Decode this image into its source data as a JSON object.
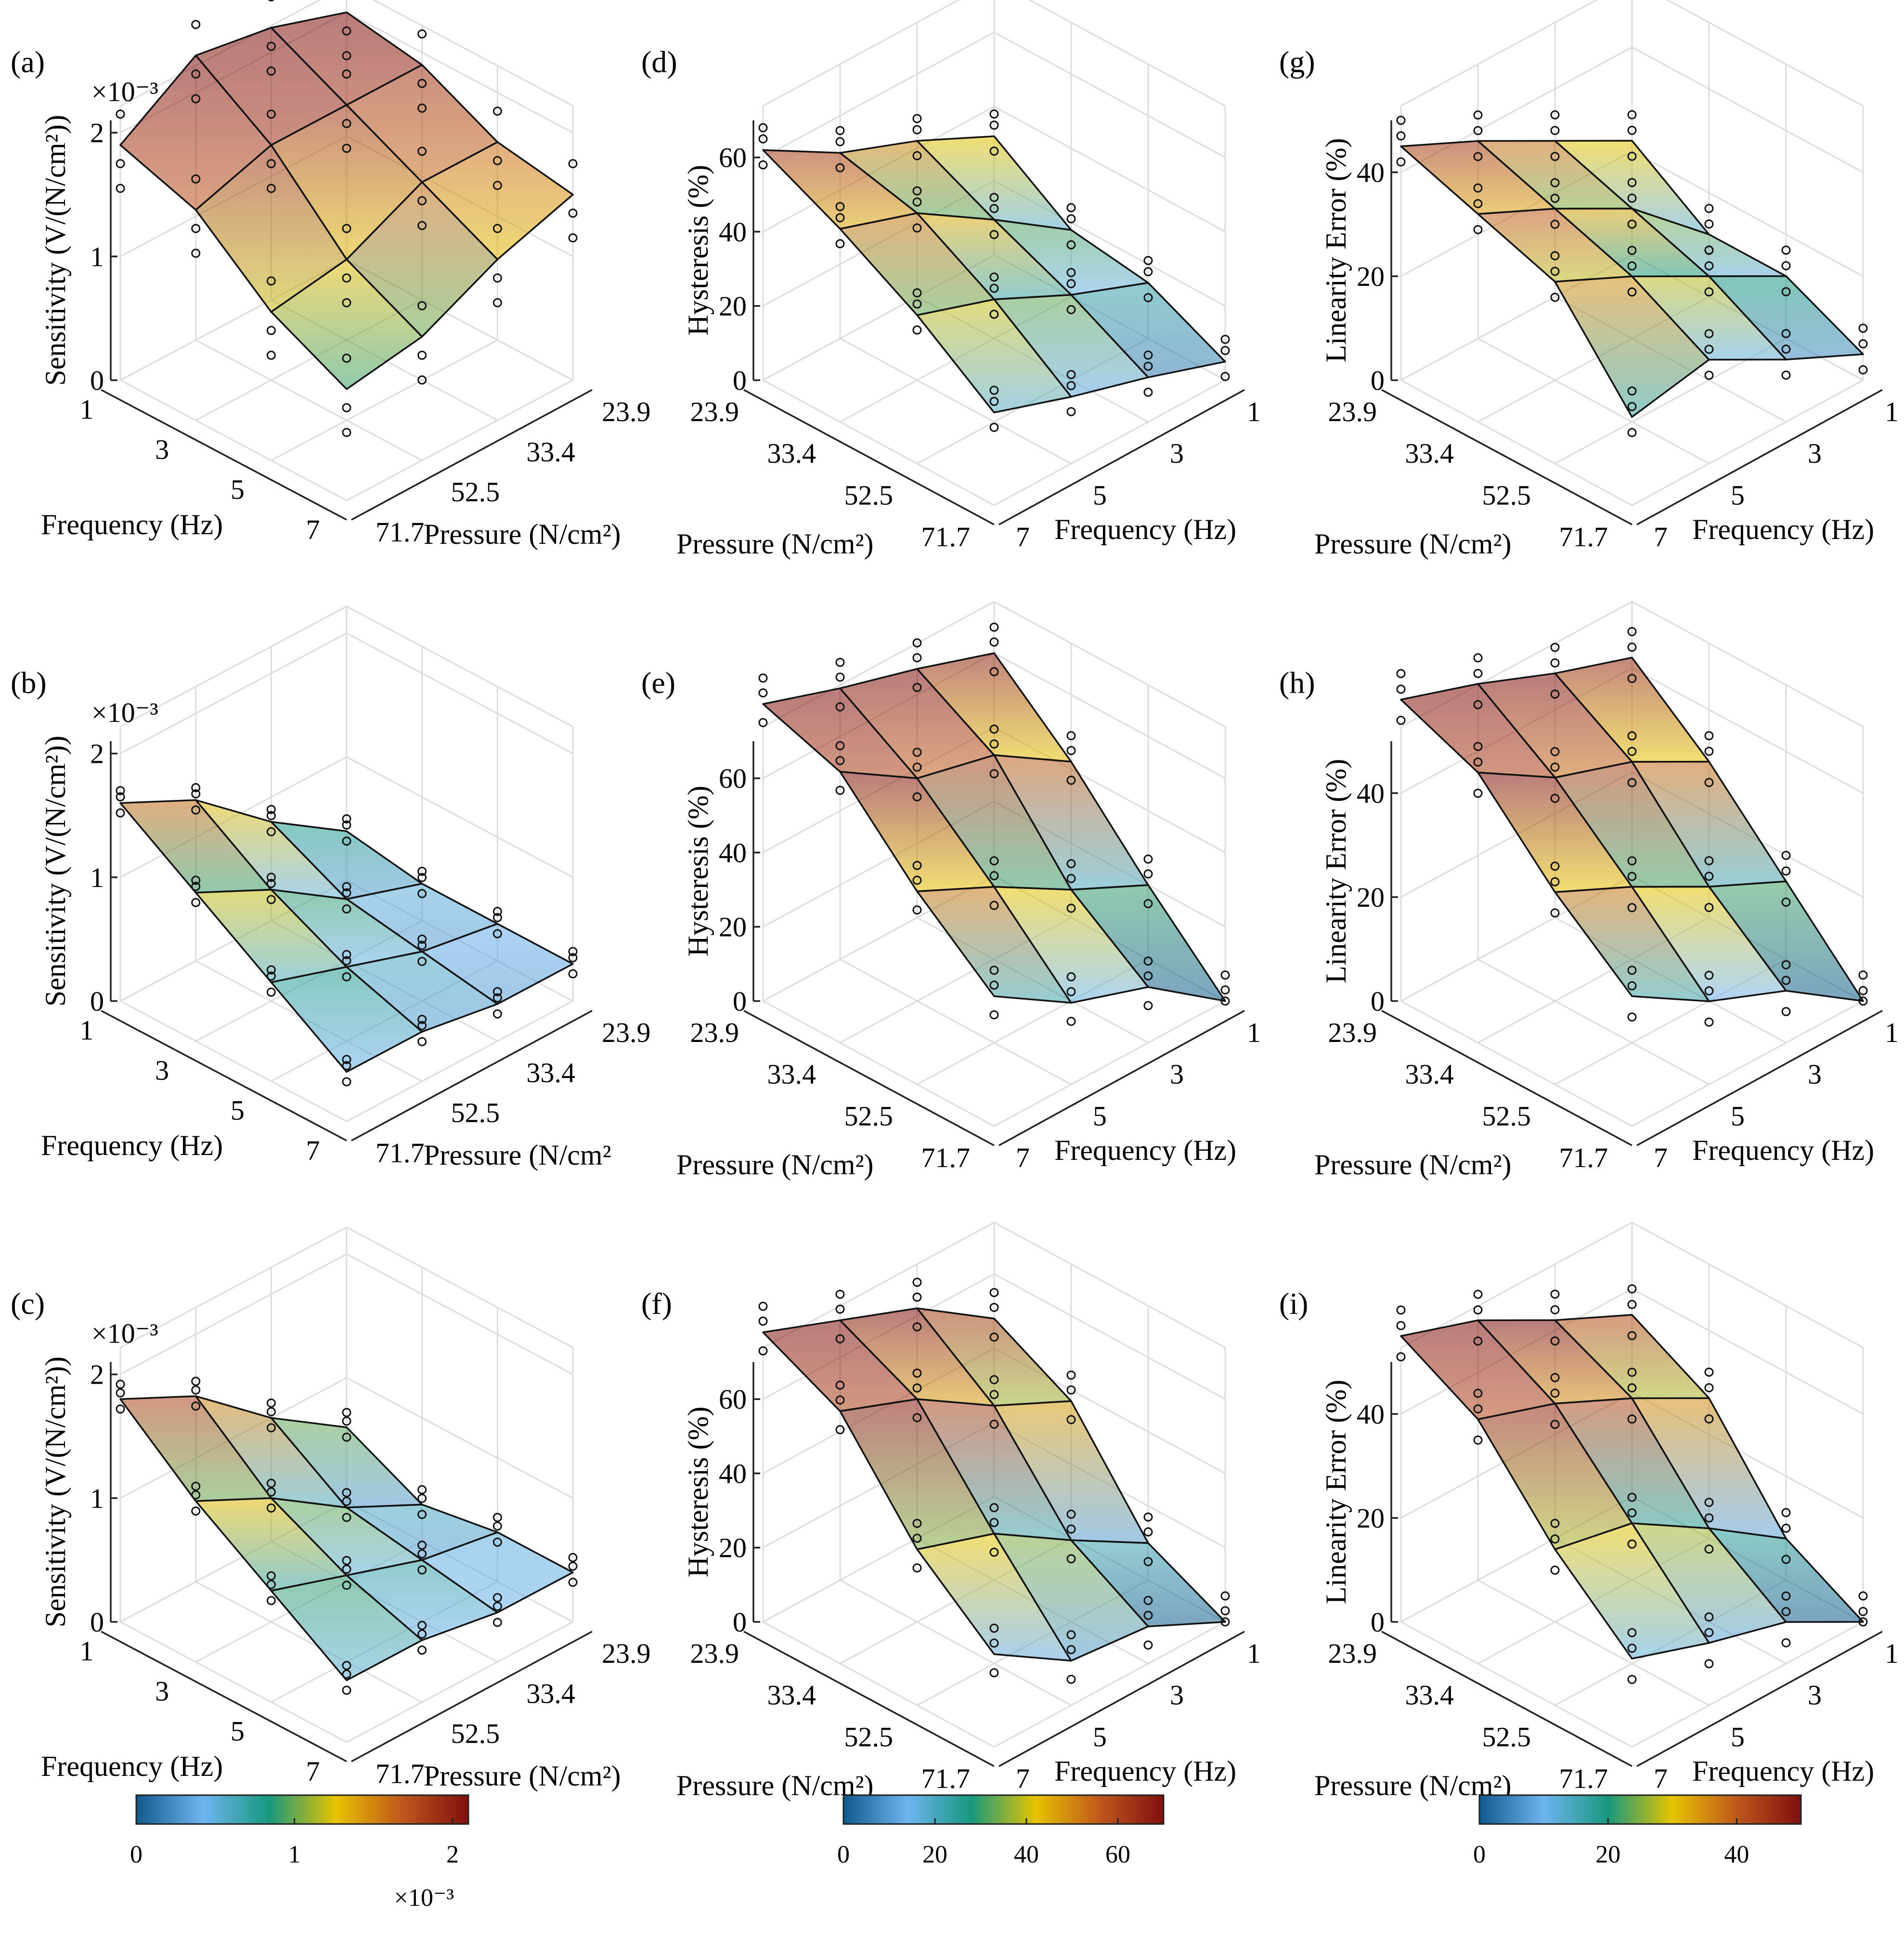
{
  "figure": {
    "colors": {
      "c0": "#0f5a8c",
      "c1": "#6eb4f0",
      "c2": "#18987e",
      "c3": "#e6c300",
      "c4": "#c0571c",
      "c5": "#7f1010"
    },
    "colorbars": [
      {
        "id": "cb1",
        "ticks": [
          "0",
          "1",
          "2"
        ],
        "min": 0,
        "max": 2.1,
        "tickvals": [
          0,
          1,
          2
        ],
        "exponent": "×10⁻³"
      },
      {
        "id": "cb2",
        "ticks": [
          "0",
          "20",
          "40",
          "60"
        ],
        "min": 0,
        "max": 70,
        "tickvals": [
          0,
          20,
          40,
          60
        ],
        "exponent": ""
      },
      {
        "id": "cb3",
        "ticks": [
          "0",
          "20",
          "40"
        ],
        "min": 0,
        "max": 50,
        "tickvals": [
          0,
          20,
          40
        ],
        "exponent": ""
      }
    ]
  },
  "chart_data": [
    {
      "id": "a",
      "label": "(a)",
      "type": "surface",
      "zlabel": "Sensitivity (V/(N/cm²))",
      "zexp": "×10⁻³",
      "xlabel": "Frequency (Hz)",
      "ylabel": "Pressure (N/cm²)",
      "freq": [
        1,
        3,
        5,
        7
      ],
      "pressure": [
        23.9,
        33.4,
        52.5,
        71.7
      ],
      "zticks": [
        "0",
        "1",
        "2"
      ],
      "zticknum": [
        0,
        1,
        2
      ],
      "zmax": 2.1,
      "values": [
        [
          2.0,
          2.2,
          2.3,
          1.9
        ],
        [
          1.9,
          1.9,
          1.9,
          1.7
        ],
        [
          1.6,
          1.6,
          1.3,
          1.2
        ],
        [
          1.5,
          1.3,
          1.0,
          0.9
        ]
      ],
      "cmax": 2.1,
      "view": "a",
      "scatter_offsets": [
        -0.35,
        -0.15,
        0.25
      ]
    },
    {
      "id": "d",
      "label": "(d)",
      "type": "surface",
      "zlabel": "Hysteresis (%)",
      "zexp": "",
      "xlabel": "Frequency (Hz)",
      "ylabel": "Pressure (N/cm²)",
      "freq": [
        1,
        3,
        5,
        7
      ],
      "pressure": [
        23.9,
        33.4,
        52.5,
        71.7
      ],
      "zticks": [
        "0",
        "20",
        "40",
        "60"
      ],
      "zticknum": [
        0,
        20,
        40,
        60
      ],
      "zmax": 70,
      "values": [
        [
          32,
          42,
          50,
          62
        ],
        [
          18,
          32,
          45,
          52
        ],
        [
          15,
          23,
          33,
          40
        ],
        [
          5,
          12,
          18,
          25
        ]
      ],
      "cmax": 70,
      "view": "d",
      "scatter_offsets": [
        -4,
        3,
        6
      ]
    },
    {
      "id": "g",
      "label": "(g)",
      "type": "surface",
      "zlabel": "Linearity Error (%)",
      "zexp": "",
      "xlabel": "Frequency (Hz)",
      "ylabel": "Pressure (N/cm²)",
      "freq": [
        1,
        3,
        5,
        7
      ],
      "pressure": [
        23.9,
        33.4,
        52.5,
        71.7
      ],
      "zticks": [
        "0",
        "20",
        "40"
      ],
      "zticknum": [
        0,
        20,
        40
      ],
      "zmax": 50,
      "values": [
        [
          22,
          30,
          38,
          45
        ],
        [
          12,
          25,
          33,
          40
        ],
        [
          12,
          20,
          28,
          35
        ],
        [
          5,
          12,
          20,
          17
        ]
      ],
      "cmax": 50,
      "view": "d",
      "scatter_offsets": [
        -3,
        2,
        5
      ]
    },
    {
      "id": "b",
      "label": "(b)",
      "type": "surface",
      "zlabel": "Sensitivity (V/(N/cm²))",
      "zexp": "×10⁻³",
      "xlabel": "Frequency (Hz)",
      "ylabel": "Pressure (N/cm²",
      "freq": [
        1,
        3,
        5,
        7
      ],
      "pressure": [
        23.9,
        33.4,
        52.5,
        71.7
      ],
      "zticks": [
        "0",
        "1",
        "2"
      ],
      "zticknum": [
        0,
        1,
        2
      ],
      "zmax": 2.1,
      "values": [
        [
          0.4,
          0.8,
          1.3,
          1.6
        ],
        [
          0.3,
          0.5,
          0.9,
          1.2
        ],
        [
          0.3,
          0.4,
          0.6,
          0.8
        ],
        [
          0.3,
          0.3,
          0.4,
          0.4
        ]
      ],
      "cmax": 2.1,
      "view": "a",
      "scatter_offsets": [
        -0.08,
        0.05,
        0.1
      ]
    },
    {
      "id": "e",
      "label": "(e)",
      "type": "surface",
      "zlabel": "Hysteresis (%)",
      "zexp": "",
      "xlabel": "Frequency (Hz)",
      "ylabel": "Pressure (N/cm²)",
      "freq": [
        1,
        3,
        5,
        7
      ],
      "pressure": [
        23.9,
        33.4,
        52.5,
        71.7
      ],
      "zticks": [
        "0",
        "20",
        "40",
        "60"
      ],
      "zticknum": [
        0,
        20,
        40,
        60
      ],
      "zmax": 70,
      "values": [
        [
          60,
          67,
          73,
          80
        ],
        [
          42,
          55,
          60,
          73
        ],
        [
          20,
          30,
          42,
          52
        ],
        [
          0,
          15,
          22,
          35
        ]
      ],
      "cmax": 70,
      "view": "d",
      "scatter_offsets": [
        -5,
        3,
        7
      ]
    },
    {
      "id": "h",
      "label": "(h)",
      "type": "surface",
      "zlabel": "Linearity Error (%)",
      "zexp": "",
      "xlabel": "Frequency (Hz)",
      "ylabel": "Pressure (N/cm²)",
      "freq": [
        1,
        3,
        5,
        7
      ],
      "pressure": [
        23.9,
        33.4,
        52.5,
        71.7
      ],
      "zticks": [
        "0",
        "20",
        "40"
      ],
      "zticknum": [
        0,
        20,
        40
      ],
      "zmax": 50,
      "values": [
        [
          42,
          47,
          53,
          58
        ],
        [
          30,
          38,
          43,
          52
        ],
        [
          15,
          22,
          30,
          37
        ],
        [
          0,
          10,
          16,
          25
        ]
      ],
      "cmax": 50,
      "view": "d",
      "scatter_offsets": [
        -4,
        2,
        5
      ]
    },
    {
      "id": "c",
      "label": "(c)",
      "type": "surface",
      "zlabel": "Sensitivity (V/(N/cm²))",
      "zexp": "×10⁻³",
      "xlabel": "Frequency (Hz)",
      "ylabel": "Pressure (N/cm²)",
      "freq": [
        1,
        3,
        5,
        7
      ],
      "pressure": [
        23.9,
        33.4,
        52.5,
        71.7
      ],
      "zticks": [
        "0",
        "1",
        "2"
      ],
      "zticknum": [
        0,
        1,
        2
      ],
      "zmax": 2.1,
      "values": [
        [
          0.6,
          1.0,
          1.5,
          1.8
        ],
        [
          0.3,
          0.6,
          1.0,
          1.3
        ],
        [
          0.4,
          0.5,
          0.7,
          0.9
        ],
        [
          0.4,
          0.4,
          0.5,
          0.5
        ]
      ],
      "cmax": 2.1,
      "view": "a",
      "scatter_offsets": [
        -0.08,
        0.05,
        0.12
      ]
    },
    {
      "id": "f",
      "label": "(f)",
      "type": "surface",
      "zlabel": "Hysteresis (%)",
      "zexp": "",
      "xlabel": "Frequency (Hz)",
      "ylabel": "Pressure (N/cm²)",
      "freq": [
        1,
        3,
        5,
        7
      ],
      "pressure": [
        23.9,
        33.4,
        52.5,
        71.7
      ],
      "zticks": [
        "0",
        "20",
        "40",
        "60"
      ],
      "zticknum": [
        0,
        20,
        40,
        60
      ],
      "zmax": 70,
      "values": [
        [
          48,
          62,
          70,
          78
        ],
        [
          37,
          47,
          60,
          68
        ],
        [
          10,
          22,
          35,
          42
        ],
        [
          0,
          10,
          12,
          25
        ]
      ],
      "cmax": 70,
      "view": "d",
      "scatter_offsets": [
        -5,
        3,
        7
      ]
    },
    {
      "id": "i",
      "label": "(i)",
      "type": "surface",
      "zlabel": "Linearity Error (%)",
      "zexp": "",
      "xlabel": "Frequency (Hz)",
      "ylabel": "Pressure (N/cm²)",
      "freq": [
        1,
        3,
        5,
        7
      ],
      "pressure": [
        23.9,
        33.4,
        52.5,
        71.7
      ],
      "zticks": [
        "0",
        "20",
        "40"
      ],
      "zticknum": [
        0,
        20,
        40
      ],
      "zmax": 50,
      "values": [
        [
          35,
          42,
          50,
          55
        ],
        [
          27,
          35,
          42,
          47
        ],
        [
          8,
          18,
          27,
          30
        ],
        [
          0,
          8,
          12,
          17
        ]
      ],
      "cmax": 50,
      "view": "d",
      "scatter_offsets": [
        -4,
        2,
        5
      ]
    }
  ]
}
